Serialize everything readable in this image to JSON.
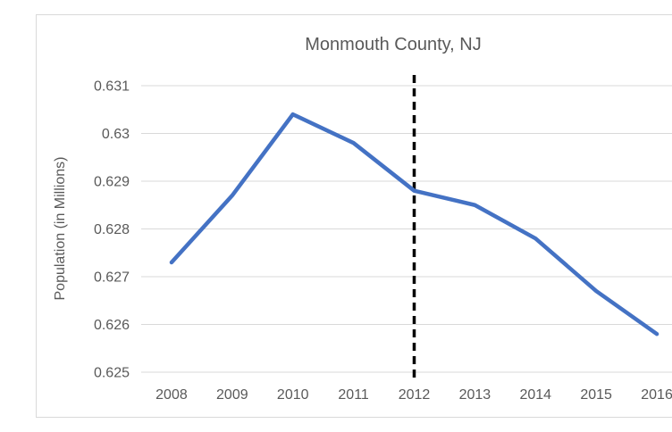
{
  "chart_data": {
    "type": "line",
    "title": "Monmouth County, NJ",
    "xlabel": "",
    "ylabel": "Population (in Millions)",
    "categories": [
      "2008",
      "2009",
      "2010",
      "2011",
      "2012",
      "2013",
      "2014",
      "2015",
      "2016"
    ],
    "series": [
      {
        "name": "",
        "color": "#4472C4",
        "values": [
          0.6273,
          0.6287,
          0.6304,
          0.6298,
          0.6288,
          0.6285,
          0.6278,
          0.6267,
          0.6258
        ]
      }
    ],
    "ylim": [
      0.625,
      0.631
    ],
    "ytick_step": 0.001,
    "ytick_labels": [
      "0.625",
      "0.626",
      "0.627",
      "0.628",
      "0.629",
      "0.63",
      "0.631"
    ],
    "grid": "horizontal",
    "legend": "none",
    "annotations": [
      {
        "type": "vline",
        "x_category": "2012",
        "line_style": "dashed",
        "color": "#000000"
      }
    ]
  },
  "colors": {
    "text": "#595959",
    "gridline": "#D9D9D9",
    "frame_border": "#D9D9D9",
    "series_line": "#4472C4",
    "reference_line": "#000000"
  }
}
